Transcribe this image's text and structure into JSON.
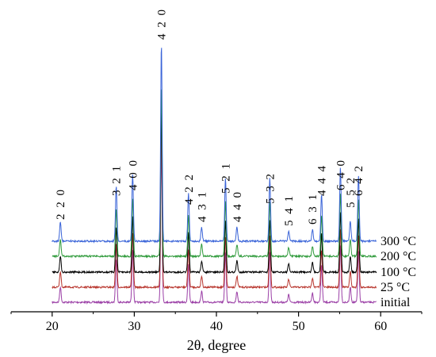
{
  "chart_data": {
    "type": "line",
    "xlabel": "2θ, degree",
    "ylabel": "",
    "title": "",
    "xlim": [
      15,
      65
    ],
    "x_ticks": [
      20,
      30,
      40,
      50,
      60
    ],
    "x_tick_labels": [
      "20",
      "30",
      "40",
      "50",
      "60"
    ],
    "grid": false,
    "legend": "right-side labels next to each trace",
    "series": [
      {
        "name": "initial",
        "color": "#9b3fa6"
      },
      {
        "name": "25 °C",
        "color": "#b8352d"
      },
      {
        "name": "100 °C",
        "color": "#000000"
      },
      {
        "name": "200 °C",
        "color": "#2e9a3a"
      },
      {
        "name": "300 °C",
        "color": "#3a64d8"
      }
    ],
    "peaks": [
      {
        "label": "2 2 0",
        "position": 21.0,
        "height": 0.1
      },
      {
        "label": "3 2 1",
        "position": 27.8,
        "height": 0.28
      },
      {
        "label": "4 0 0",
        "position": 29.8,
        "height": 0.34
      },
      {
        "label": "4 2 0",
        "position": 33.3,
        "height": 1.0
      },
      {
        "label": "4 2 2",
        "position": 36.6,
        "height": 0.24
      },
      {
        "label": "4 3 1",
        "position": 38.2,
        "height": 0.07
      },
      {
        "label": "5 2 1",
        "position": 41.1,
        "height": 0.32
      },
      {
        "label": "4 4 0",
        "position": 42.5,
        "height": 0.07
      },
      {
        "label": "5 3 2",
        "position": 46.5,
        "height": 0.32
      },
      {
        "label": "5 4 1",
        "position": 48.8,
        "height": 0.05
      },
      {
        "label": "6 3 1",
        "position": 51.7,
        "height": 0.06
      },
      {
        "label": "4 4 4",
        "position": 52.8,
        "height": 0.24
      },
      {
        "label": "6 4 0",
        "position": 55.1,
        "height": 0.37
      },
      {
        "label": "5 5 2",
        "position": 56.3,
        "height": 0.1
      },
      {
        "label": "6 4 2",
        "position": 57.3,
        "height": 0.33
      }
    ]
  }
}
